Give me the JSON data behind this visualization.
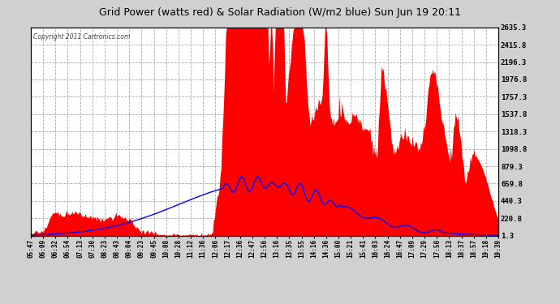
{
  "title": "Grid Power (watts red) & Solar Radiation (W/m2 blue) Sun Jun 19 20:11",
  "copyright_text": "Copyright 2011 Cartronics.com",
  "background_color": "#d0d0d0",
  "plot_bg_color": "#ffffff",
  "grid_color": "#aaaaaa",
  "y_ticks": [
    1.3,
    220.8,
    440.3,
    659.8,
    879.3,
    1098.8,
    1318.3,
    1537.8,
    1757.3,
    1976.8,
    2196.3,
    2415.8,
    2635.3
  ],
  "x_labels": [
    "05:47",
    "06:09",
    "06:32",
    "06:54",
    "07:13",
    "07:30",
    "08:23",
    "08:43",
    "09:04",
    "09:23",
    "09:45",
    "10:08",
    "10:28",
    "11:12",
    "11:36",
    "12:06",
    "12:17",
    "12:36",
    "12:47",
    "12:56",
    "13:16",
    "13:35",
    "13:55",
    "14:16",
    "14:36",
    "15:00",
    "15:21",
    "15:41",
    "16:03",
    "16:24",
    "16:47",
    "17:09",
    "17:29",
    "17:50",
    "18:13",
    "18:37",
    "18:57",
    "19:18",
    "19:39"
  ],
  "red_color": "#ff0000",
  "blue_color": "#0000ff",
  "ylim_min": 1.3,
  "ylim_max": 2635.3,
  "n_points": 500
}
